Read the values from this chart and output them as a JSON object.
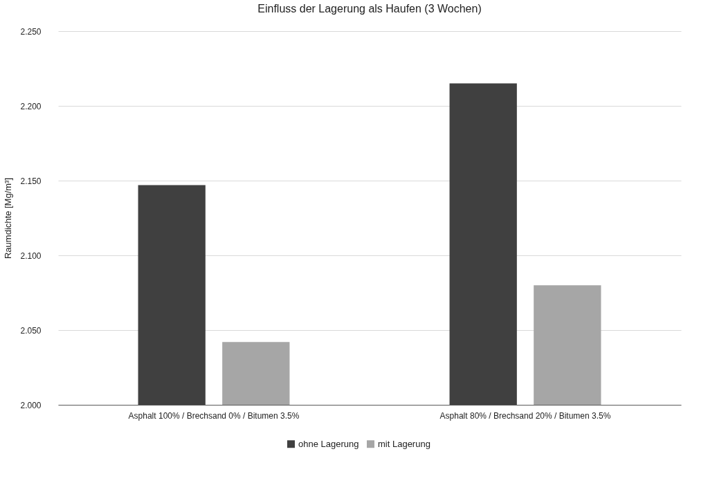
{
  "chart_data": {
    "type": "bar",
    "title": "Einfluss der Lagerung als Haufen (3 Wochen)",
    "ylabel": "Raumdichte  [Mg/m³]",
    "categories": [
      "Asphalt 100% / Brechsand 0% / Bitumen 3.5%",
      "Asphalt 80% / Brechsand 20% / Bitumen 3.5%"
    ],
    "series": [
      {
        "name": "ohne Lagerung",
        "color": "#404040",
        "values": [
          2.147,
          2.215
        ]
      },
      {
        "name": "mit Lagerung",
        "color": "#a6a6a6",
        "values": [
          2.042,
          2.08
        ]
      }
    ],
    "ylim": [
      2.0,
      2.25
    ],
    "yticks": [
      {
        "value": 2.0,
        "label": "2.000"
      },
      {
        "value": 2.05,
        "label": "2.050"
      },
      {
        "value": 2.1,
        "label": "2.100"
      },
      {
        "value": 2.15,
        "label": "2.150"
      },
      {
        "value": 2.2,
        "label": "2.200"
      },
      {
        "value": 2.25,
        "label": "2.250"
      }
    ],
    "grid": "y",
    "legend": "bottom"
  }
}
